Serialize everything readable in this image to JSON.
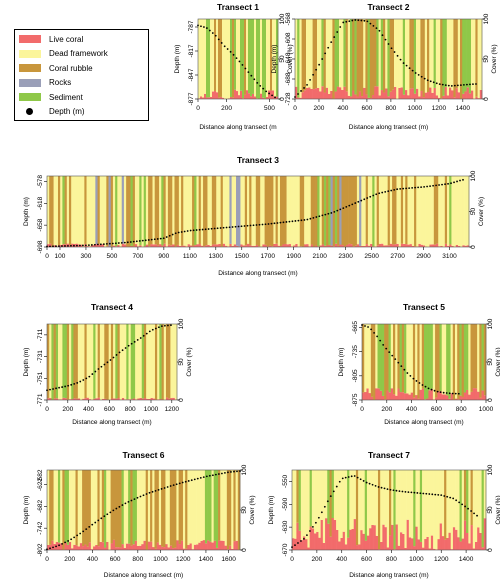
{
  "legend": {
    "live_coral": {
      "label": "Live coral",
      "color": "#f26b6b"
    },
    "dead_framework": {
      "label": "Dead framework",
      "color": "#fbf59b"
    },
    "coral_rubble": {
      "label": "Coral rubble",
      "color": "#c8963c"
    },
    "rocks": {
      "label": "Rocks",
      "color": "#9a9fb8"
    },
    "sediment": {
      "label": "Sediment",
      "color": "#8fc849"
    },
    "depth": {
      "label": "Depth (m)",
      "color": "#000000"
    }
  },
  "chart_data": [
    {
      "type": "area",
      "title": "Transect 1",
      "xlabel": "Distance along transect (m",
      "ylabel": "Depth (m)",
      "ylabel_right": "Cover (%)",
      "x_ticks": [
        0,
        200,
        500
      ],
      "x_tick_labels": [
        "0",
        "200",
        "500"
      ],
      "xlim": [
        0,
        560
      ],
      "depth_ticks": [
        -787,
        -817,
        -847,
        -877
      ],
      "depth_lim": [
        -877,
        -777
      ],
      "cover_ticks": [
        0,
        50,
        100
      ],
      "cover_tick_labels": [
        "0",
        "50",
        "100"
      ],
      "depth_profile": {
        "x": [
          0,
          60,
          120,
          180,
          240,
          300,
          360,
          420,
          480,
          540
        ],
        "y": [
          -785,
          -788,
          -797,
          -810,
          -820,
          -832,
          -845,
          -858,
          -868,
          -875
        ]
      },
      "cover_mix": {
        "live_coral": 8,
        "dead_framework": 32,
        "coral_rubble": 25,
        "rocks": 0,
        "sediment": 35
      }
    },
    {
      "type": "area",
      "title": "Transect 2",
      "xlabel": "Distance along transect (m)",
      "ylabel": "Depth (m)",
      "ylabel_right": "Cover (%)",
      "x_ticks": [
        0,
        200,
        400,
        600,
        800,
        1000,
        1200,
        1400
      ],
      "x_tick_labels": [
        "0",
        "200",
        "400",
        "600",
        "800",
        "1000",
        "1200",
        "1400"
      ],
      "xlim": [
        0,
        1560
      ],
      "depth_ticks": [
        -568,
        -608,
        -648,
        -688,
        -728
      ],
      "depth_lim": [
        -728,
        -568
      ],
      "cover_ticks": [
        0,
        50,
        100
      ],
      "cover_tick_labels": [
        "0",
        "50",
        "100"
      ],
      "depth_profile": {
        "x": [
          0,
          100,
          200,
          300,
          400,
          500,
          600,
          700,
          800,
          900,
          1000,
          1100,
          1200,
          1300,
          1400,
          1500
        ],
        "y": [
          -724,
          -700,
          -660,
          -615,
          -575,
          -570,
          -572,
          -590,
          -625,
          -655,
          -675,
          -690,
          -698,
          -702,
          -700,
          -698
        ]
      },
      "cover_mix": {
        "live_coral": 10,
        "dead_framework": 30,
        "coral_rubble": 30,
        "rocks": 0,
        "sediment": 30
      }
    },
    {
      "type": "area",
      "title": "Transect 3",
      "xlabel": "Distance along transect (m)",
      "ylabel": "Depth (m)",
      "ylabel_right": "Cover (%)",
      "x_ticks": [
        0,
        100,
        300,
        500,
        700,
        900,
        1100,
        1300,
        1500,
        1700,
        1900,
        2100,
        2300,
        2500,
        2700,
        2900,
        3100
      ],
      "x_tick_labels": [
        "0",
        "100",
        "300",
        "500",
        "700",
        "900",
        "1100",
        "1300",
        "1500",
        "1700",
        "1900",
        "2100",
        "2300",
        "2500",
        "2700",
        "2900",
        "3100"
      ],
      "xlim": [
        0,
        3250
      ],
      "depth_ticks": [
        -578,
        -618,
        -658,
        -698
      ],
      "depth_lim": [
        -698,
        -568
      ],
      "cover_ticks": [
        0,
        50,
        100
      ],
      "cover_tick_labels": [
        "0",
        "50",
        "100"
      ],
      "depth_profile": {
        "x": [
          0,
          300,
          600,
          900,
          1000,
          1100,
          1400,
          1700,
          2000,
          2200,
          2400,
          2550,
          2700,
          2900,
          3100,
          3200
        ],
        "y": [
          -697,
          -695,
          -690,
          -682,
          -672,
          -668,
          -662,
          -656,
          -648,
          -635,
          -615,
          -600,
          -592,
          -588,
          -582,
          -575
        ]
      },
      "cover_mix": {
        "live_coral": 3,
        "dead_framework": 55,
        "coral_rubble": 30,
        "rocks": 6,
        "sediment": 6
      }
    },
    {
      "type": "area",
      "title": "Transect 4",
      "xlabel": "Distance along transect (m)",
      "ylabel": "Depth (m)",
      "ylabel_right": "Cover (%)",
      "x_ticks": [
        0,
        200,
        400,
        600,
        800,
        1000,
        1200
      ],
      "x_tick_labels": [
        "0",
        "200",
        "400",
        "600",
        "800",
        "1000",
        "1200"
      ],
      "xlim": [
        0,
        1250
      ],
      "depth_ticks": [
        -711,
        -731,
        -751,
        -771
      ],
      "depth_lim": [
        -771,
        -701
      ],
      "cover_ticks": [
        0,
        50,
        100
      ],
      "cover_tick_labels": [
        "0",
        "50",
        "100"
      ],
      "depth_profile": {
        "x": [
          0,
          100,
          200,
          300,
          400,
          500,
          600,
          700,
          800,
          900,
          1000,
          1100,
          1200
        ],
        "y": [
          -762,
          -760,
          -758,
          -755,
          -750,
          -742,
          -735,
          -727,
          -720,
          -714,
          -707,
          -703,
          -702
        ]
      },
      "cover_mix": {
        "live_coral": 2,
        "dead_framework": 38,
        "coral_rubble": 35,
        "rocks": 0,
        "sediment": 25
      }
    },
    {
      "type": "area",
      "title": "Transect 5",
      "xlabel": "Distance along transect (m)",
      "ylabel": "Depth (m)",
      "ylabel_right": "Cover (%)",
      "x_ticks": [
        0,
        200,
        400,
        600,
        800,
        1000
      ],
      "x_tick_labels": [
        "0",
        "200",
        "400",
        "600",
        "800",
        "1000"
      ],
      "xlim": [
        0,
        1000
      ],
      "depth_ticks": [
        -665,
        -735,
        -805,
        -875
      ],
      "depth_lim": [
        -875,
        -655
      ],
      "cover_ticks": [
        0,
        50,
        100
      ],
      "cover_tick_labels": [
        "0",
        "50",
        "100"
      ],
      "depth_profile": {
        "x": [
          0,
          60,
          120,
          180,
          240,
          300,
          360,
          420,
          480,
          540,
          600,
          660,
          720,
          780
        ],
        "y": [
          -658,
          -665,
          -690,
          -720,
          -745,
          -770,
          -795,
          -815,
          -830,
          -842,
          -850,
          -854,
          -856,
          -857
        ]
      },
      "cover_mix": {
        "live_coral": 10,
        "dead_framework": 22,
        "coral_rubble": 40,
        "rocks": 0,
        "sediment": 28
      }
    },
    {
      "type": "area",
      "title": "Transect 6",
      "xlabel": "Distance along transect (m)",
      "ylabel": "Depth (m)",
      "ylabel_right": "Cover (%)",
      "x_ticks": [
        0,
        200,
        400,
        600,
        800,
        1000,
        1200,
        1400,
        1600
      ],
      "x_tick_labels": [
        "0",
        "200",
        "400",
        "600",
        "800",
        "1000",
        "1200",
        "1400",
        "1600"
      ],
      "xlim": [
        0,
        1700
      ],
      "depth_ticks": [
        -622,
        -682,
        -742,
        -802
      ],
      "depth_lim": [
        -802,
        -582
      ],
      "cover_ticks": [
        0,
        50,
        100
      ],
      "cover_tick_labels": [
        "0",
        "50",
        "100"
      ],
      "extra_top_tick": "-582",
      "depth_profile": {
        "x": [
          0,
          100,
          200,
          300,
          400,
          500,
          600,
          700,
          800,
          900,
          1000,
          1100,
          1200,
          1300,
          1400,
          1500,
          1600,
          1700
        ],
        "y": [
          -800,
          -790,
          -775,
          -755,
          -732,
          -710,
          -690,
          -672,
          -658,
          -645,
          -635,
          -625,
          -616,
          -608,
          -600,
          -594,
          -588,
          -585
        ]
      },
      "cover_mix": {
        "live_coral": 8,
        "dead_framework": 45,
        "coral_rubble": 30,
        "rocks": 0,
        "sediment": 17
      }
    },
    {
      "type": "area",
      "title": "Transect 7",
      "xlabel": "Distance along transect (m)",
      "ylabel": "Depth (m)",
      "ylabel_right": "Cover (%)",
      "x_ticks": [
        0,
        200,
        400,
        600,
        800,
        1000,
        1200,
        1400
      ],
      "x_tick_labels": [
        "0",
        "200",
        "400",
        "600",
        "800",
        "1000",
        "1200",
        "1400"
      ],
      "xlim": [
        0,
        1560
      ],
      "depth_ticks": [
        -550,
        -590,
        -630,
        -670
      ],
      "depth_lim": [
        -670,
        -530
      ],
      "cover_ticks": [
        0,
        50,
        100
      ],
      "cover_tick_labels": [
        "0",
        "50",
        "100"
      ],
      "depth_profile": {
        "x": [
          0,
          100,
          200,
          300,
          400,
          500,
          600,
          700,
          800,
          900,
          1000,
          1100,
          1200,
          1300,
          1400,
          1500
        ],
        "y": [
          -665,
          -650,
          -620,
          -580,
          -545,
          -540,
          -552,
          -560,
          -565,
          -568,
          -570,
          -572,
          -574,
          -580,
          -595,
          -612
        ]
      },
      "cover_mix": {
        "live_coral": 25,
        "dead_framework": 55,
        "coral_rubble": 10,
        "rocks": 0,
        "sediment": 10
      }
    }
  ]
}
